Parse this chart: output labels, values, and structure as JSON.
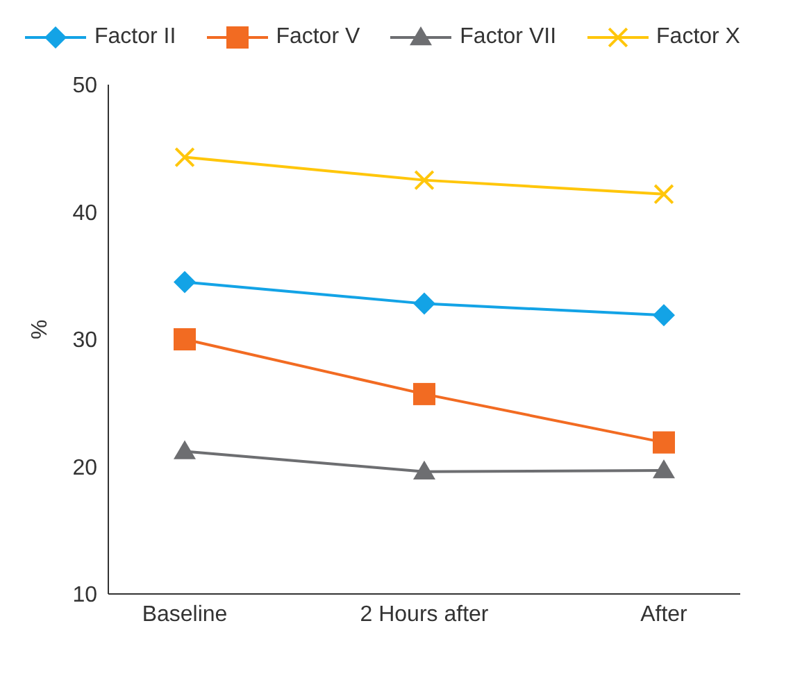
{
  "chart_data": {
    "type": "line",
    "categories": [
      "Baseline",
      "2 Hours after",
      "After"
    ],
    "ylabel": "%",
    "ylim": [
      10,
      50
    ],
    "yticks": [
      10,
      20,
      30,
      40,
      50
    ],
    "grid": false,
    "legend": "top",
    "line_style": "solid",
    "series": [
      {
        "name": "Factor II",
        "color": "#13a3e6",
        "marker": "diamond",
        "values": [
          34.5,
          32.8,
          31.9
        ]
      },
      {
        "name": "Factor V",
        "color": "#f26b22",
        "marker": "square",
        "values": [
          30,
          25.7,
          21.9
        ]
      },
      {
        "name": "Factor VII",
        "color": "#6d6e71",
        "marker": "triangle",
        "values": [
          21.2,
          19.6,
          19.7
        ]
      },
      {
        "name": "Factor X",
        "color": "#ffc60b",
        "marker": "cross",
        "values": [
          44.3,
          42.5,
          41.4
        ]
      }
    ]
  }
}
